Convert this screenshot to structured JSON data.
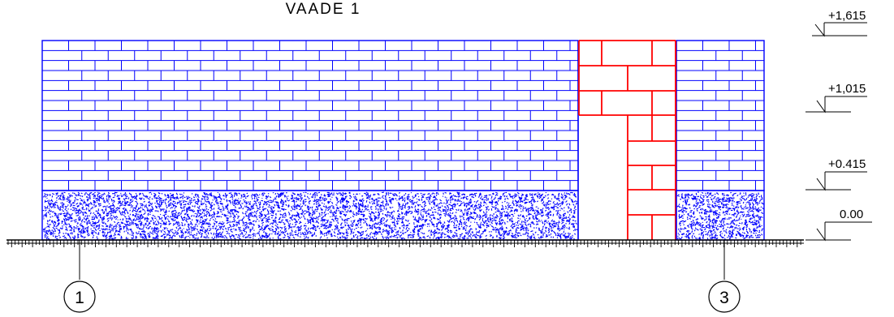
{
  "title": "VAADE 1",
  "elevations": [
    {
      "label": "+1,615",
      "value": 1.615
    },
    {
      "label": "+1,015",
      "value": 1.015
    },
    {
      "label": "+0.415",
      "value": 0.415
    },
    {
      "label": "0.00",
      "value": 0.0
    }
  ],
  "axes": [
    {
      "label": "1"
    },
    {
      "label": "3"
    }
  ],
  "colors": {
    "brick": "#0000ff",
    "opening_brick": "#ff0000",
    "foundation_hatch": "#0000ff",
    "ground": "#000000",
    "annotation": "#000000"
  }
}
